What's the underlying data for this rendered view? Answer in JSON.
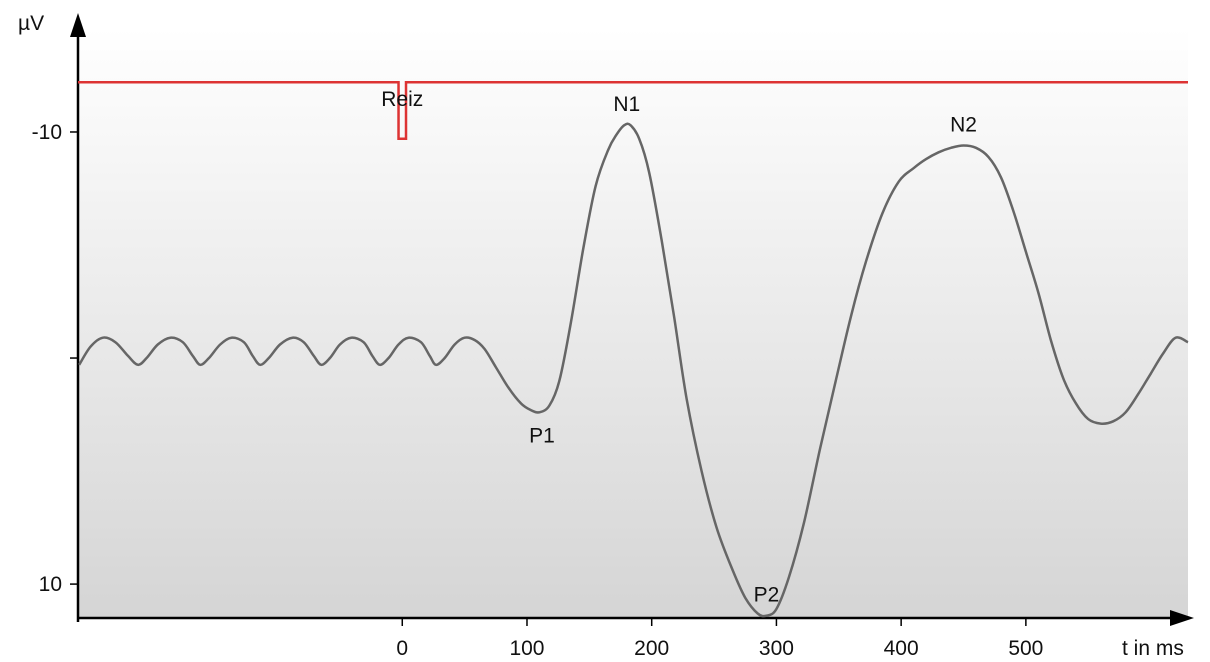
{
  "chart_data": {
    "type": "line",
    "y_unit": "µV",
    "x_unit": "t in ms",
    "y_axis": {
      "inverted": true,
      "ylim": [
        -14.6,
        11.5
      ],
      "ticks": [
        {
          "value": -10,
          "label": "-10"
        },
        {
          "value": 0,
          "label": ""
        },
        {
          "value": 10,
          "label": "10"
        }
      ]
    },
    "x_axis": {
      "xlim": [
        -260,
        630
      ],
      "ticks": [
        {
          "value": 0,
          "label": "0"
        },
        {
          "value": 100,
          "label": "100"
        },
        {
          "value": 200,
          "label": "200"
        },
        {
          "value": 300,
          "label": "300"
        },
        {
          "value": 400,
          "label": "400"
        },
        {
          "value": 500,
          "label": "500"
        }
      ]
    },
    "grid": false,
    "background": "vertical gradient white to light gray",
    "stimulus": {
      "label": "Reiz",
      "time": 0,
      "level": -12.2,
      "pulse_bottom": -9.7,
      "pulse_width": 6,
      "color": "#dd3333"
    },
    "waveform": {
      "color": "#666666",
      "points": [
        [
          -259,
          0.3
        ],
        [
          -250,
          -0.5
        ],
        [
          -240,
          -0.9
        ],
        [
          -230,
          -0.7
        ],
        [
          -220,
          -0.1
        ],
        [
          -212,
          0.3
        ],
        [
          -205,
          0.0
        ],
        [
          -196,
          -0.6
        ],
        [
          -186,
          -0.9
        ],
        [
          -176,
          -0.7
        ],
        [
          -168,
          -0.1
        ],
        [
          -162,
          0.3
        ],
        [
          -155,
          0.0
        ],
        [
          -146,
          -0.6
        ],
        [
          -137,
          -0.9
        ],
        [
          -127,
          -0.7
        ],
        [
          -120,
          -0.1
        ],
        [
          -114,
          0.3
        ],
        [
          -107,
          0.0
        ],
        [
          -98,
          -0.6
        ],
        [
          -88,
          -0.9
        ],
        [
          -79,
          -0.7
        ],
        [
          -71,
          -0.1
        ],
        [
          -65,
          0.3
        ],
        [
          -58,
          0.0
        ],
        [
          -50,
          -0.6
        ],
        [
          -41,
          -0.9
        ],
        [
          -31,
          -0.7
        ],
        [
          -24,
          -0.1
        ],
        [
          -18,
          0.3
        ],
        [
          -11,
          0.0
        ],
        [
          -3,
          -0.6
        ],
        [
          5,
          -0.9
        ],
        [
          15,
          -0.7
        ],
        [
          22,
          -0.1
        ],
        [
          27,
          0.3
        ],
        [
          34,
          0.0
        ],
        [
          42,
          -0.6
        ],
        [
          50,
          -0.9
        ],
        [
          58,
          -0.8
        ],
        [
          66,
          -0.4
        ],
        [
          75,
          0.4
        ],
        [
          85,
          1.3
        ],
        [
          95,
          2.0
        ],
        [
          103,
          2.3
        ],
        [
          110,
          2.4
        ],
        [
          118,
          2.1
        ],
        [
          126,
          1.0
        ],
        [
          135,
          -1.5
        ],
        [
          145,
          -4.8
        ],
        [
          155,
          -7.6
        ],
        [
          165,
          -9.2
        ],
        [
          172,
          -9.9
        ],
        [
          178,
          -10.3
        ],
        [
          183,
          -10.3
        ],
        [
          190,
          -9.7
        ],
        [
          198,
          -8.2
        ],
        [
          208,
          -5.2
        ],
        [
          218,
          -1.8
        ],
        [
          228,
          1.8
        ],
        [
          240,
          5.0
        ],
        [
          252,
          7.5
        ],
        [
          265,
          9.4
        ],
        [
          275,
          10.6
        ],
        [
          285,
          11.3
        ],
        [
          292,
          11.4
        ],
        [
          300,
          11.1
        ],
        [
          310,
          9.7
        ],
        [
          322,
          7.3
        ],
        [
          335,
          4.0
        ],
        [
          348,
          0.9
        ],
        [
          360,
          -1.9
        ],
        [
          372,
          -4.3
        ],
        [
          385,
          -6.4
        ],
        [
          398,
          -7.8
        ],
        [
          410,
          -8.4
        ],
        [
          420,
          -8.8
        ],
        [
          430,
          -9.1
        ],
        [
          440,
          -9.3
        ],
        [
          450,
          -9.4
        ],
        [
          460,
          -9.3
        ],
        [
          470,
          -8.9
        ],
        [
          480,
          -8.0
        ],
        [
          490,
          -6.5
        ],
        [
          500,
          -4.7
        ],
        [
          510,
          -2.9
        ],
        [
          520,
          -0.8
        ],
        [
          530,
          0.9
        ],
        [
          540,
          2.0
        ],
        [
          550,
          2.7
        ],
        [
          560,
          2.9
        ],
        [
          570,
          2.8
        ],
        [
          580,
          2.4
        ],
        [
          590,
          1.6
        ],
        [
          600,
          0.7
        ],
        [
          610,
          -0.2
        ],
        [
          620,
          -0.9
        ],
        [
          630,
          -0.7
        ]
      ]
    },
    "annotations": [
      {
        "text": "P1",
        "x": 112,
        "y": 2.4,
        "position": "below"
      },
      {
        "text": "N1",
        "x": 180,
        "y": -10.3,
        "position": "above"
      },
      {
        "text": "P2",
        "x": 292,
        "y": 11.4,
        "position": "above"
      },
      {
        "text": "N2",
        "x": 450,
        "y": -9.4,
        "position": "above"
      }
    ]
  }
}
